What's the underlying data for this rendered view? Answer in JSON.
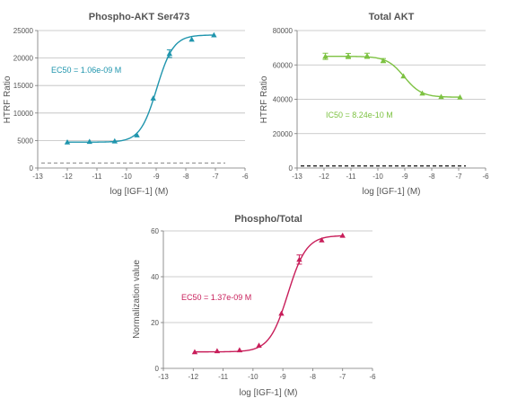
{
  "chart_data": [
    {
      "type": "scatter",
      "title": "Phospho-AKT Ser473",
      "xlabel": "log [IGF-1] (M)",
      "ylabel": "HTRF Ratio",
      "xlim": [
        -13,
        -6
      ],
      "ylim": [
        0,
        25000
      ],
      "xticks": [
        "-13",
        "-12",
        "-11",
        "-10",
        "-9",
        "-8",
        "-7",
        "-6"
      ],
      "yticks": [
        "0",
        "5000",
        "10000",
        "15000",
        "20000",
        "25000"
      ],
      "grid": true,
      "color": "#1f95ad",
      "annotation": "EC50 = 1.06e-09 M",
      "baseline": {
        "y": 900,
        "style": "dashed",
        "color": "#999999"
      },
      "series": [
        {
          "x": [
            -12,
            -11.25,
            -10.4,
            -9.65,
            -9.1,
            -8.55,
            -7.8,
            -7.05
          ],
          "y": [
            4700,
            4800,
            4900,
            6000,
            12700,
            20800,
            23400,
            24200
          ],
          "err": [
            0,
            0,
            0,
            0,
            0,
            700,
            0,
            0
          ]
        }
      ]
    },
    {
      "type": "scatter",
      "title": "Total AKT",
      "xlabel": "log [IGF-1] (M)",
      "ylabel": "HTRF Ratio",
      "xlim": [
        -13,
        -6
      ],
      "ylim": [
        0,
        80000
      ],
      "xticks": [
        "-13",
        "-12",
        "-11",
        "-10",
        "-9",
        "-8",
        "-7",
        "-6"
      ],
      "yticks": [
        "0",
        "20000",
        "40000",
        "60000",
        "80000"
      ],
      "grid": true,
      "color": "#7dc242",
      "annotation": "IC50 = 8.24e-10 M",
      "baseline": {
        "y": 1200,
        "style": "dashed",
        "color": "#222222"
      },
      "series": [
        {
          "x": [
            -11.95,
            -11.1,
            -10.4,
            -9.8,
            -9.05,
            -8.35,
            -7.65,
            -6.95
          ],
          "y": [
            65000,
            65200,
            65300,
            62500,
            53500,
            43500,
            41500,
            41200
          ],
          "err": [
            1800,
            1500,
            1500,
            1200,
            0,
            0,
            0,
            0
          ]
        }
      ]
    },
    {
      "type": "scatter",
      "title": "Phospho/Total",
      "xlabel": "log [IGF-1] (M)",
      "ylabel": "Normalization value",
      "xlim": [
        -13,
        -6
      ],
      "ylim": [
        0,
        60
      ],
      "xticks": [
        "-13",
        "-12",
        "-11",
        "-10",
        "-9",
        "-8",
        "-7",
        "-6"
      ],
      "yticks": [
        "0",
        "20",
        "40",
        "60"
      ],
      "grid": true,
      "color": "#c81e5a",
      "annotation": "EC50 = 1.37e-09 M",
      "series": [
        {
          "x": [
            -11.95,
            -11.2,
            -10.45,
            -9.8,
            -9.05,
            -8.45,
            -7.7,
            -7.0
          ],
          "y": [
            7.2,
            7.6,
            8.0,
            10.0,
            24.0,
            47.5,
            56.0,
            58.0
          ],
          "err": [
            0,
            0,
            0,
            0,
            0,
            2.0,
            0,
            0
          ]
        }
      ]
    }
  ]
}
